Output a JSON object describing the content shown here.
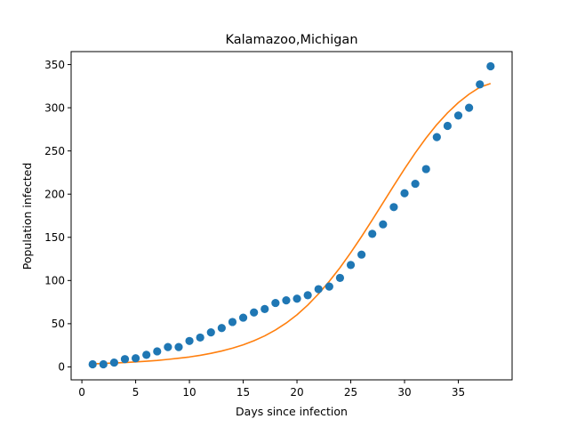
{
  "chart_data": {
    "type": "scatter",
    "title": "Kalamazoo,Michigan",
    "xlabel": "Days since infection",
    "ylabel": "Population infected",
    "xlim": [
      -1,
      40
    ],
    "ylim": [
      -15,
      365
    ],
    "xticks": [
      0,
      5,
      10,
      15,
      20,
      25,
      30,
      35
    ],
    "yticks": [
      0,
      50,
      100,
      150,
      200,
      250,
      300,
      350
    ],
    "grid": false,
    "legend": "none",
    "series": [
      {
        "kind": "scatter",
        "color": "#1f77b4",
        "x": [
          1,
          2,
          3,
          4,
          5,
          6,
          7,
          8,
          9,
          10,
          11,
          12,
          13,
          14,
          15,
          16,
          17,
          18,
          19,
          20,
          21,
          22,
          23,
          24,
          25,
          26,
          27,
          28,
          29,
          30,
          31,
          32,
          33,
          34,
          35,
          36,
          37,
          38
        ],
        "y": [
          3,
          3,
          5,
          9,
          10,
          14,
          18,
          23,
          23,
          30,
          34,
          40,
          45,
          52,
          57,
          63,
          67,
          74,
          77,
          79,
          83,
          90,
          93,
          103,
          118,
          130,
          154,
          165,
          185,
          201,
          212,
          229,
          266,
          279,
          291,
          300,
          327,
          348
        ]
      },
      {
        "kind": "line",
        "color": "#ff7f0e",
        "x": [
          1,
          2,
          3,
          4,
          5,
          6,
          7,
          8,
          9,
          10,
          11,
          12,
          13,
          14,
          15,
          16,
          17,
          18,
          19,
          20,
          21,
          22,
          23,
          24,
          25,
          26,
          27,
          28,
          29,
          30,
          31,
          32,
          33,
          34,
          35,
          36,
          37,
          38
        ],
        "y": [
          3.5,
          4,
          4.5,
          5,
          5.8,
          6.6,
          7.5,
          8.7,
          10,
          11.5,
          13.4,
          15.7,
          18.4,
          21.7,
          25.6,
          30.3,
          35.9,
          42.7,
          50.8,
          60.3,
          71.6,
          84.5,
          99,
          114.9,
          132.3,
          150.8,
          170.2,
          190,
          209.8,
          229.3,
          247.8,
          265,
          280.5,
          294.1,
          305.9,
          315.7,
          323.7,
          328
        ]
      }
    ]
  }
}
